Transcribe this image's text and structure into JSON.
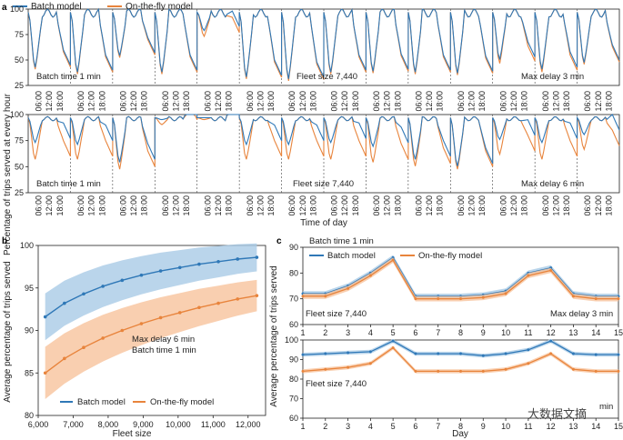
{
  "colors": {
    "batch": "#2f78b7",
    "onthefly": "#e8843c",
    "batch_band": "#a9cbe6",
    "onthefly_band": "#f7c39c"
  },
  "legend": {
    "batch_label": "Batch model",
    "onthefly_label": "On-the-fly model"
  },
  "panel_a": {
    "label": "a",
    "ylabel": "Percentage of trips served at every hour",
    "xlabel": "Time of day",
    "day_ticks": [
      "06:00",
      "12:00",
      "18:00"
    ],
    "days": 14,
    "top": {
      "yticks": [
        25,
        50,
        75,
        100
      ],
      "ylim": [
        25,
        100
      ],
      "batch_time": "Batch time 1 min",
      "fleet": "Fleet size 7,440",
      "delay": "Max delay 3 min",
      "day_min_batch": [
        40,
        35,
        52,
        35,
        78,
        30,
        28,
        35,
        36,
        35,
        34,
        48,
        38,
        45
      ],
      "day_min_onthefly": [
        38,
        33,
        50,
        33,
        72,
        28,
        26,
        33,
        34,
        33,
        32,
        44,
        35,
        43
      ]
    },
    "bottom": {
      "yticks": [
        25,
        50,
        75,
        100
      ],
      "ylim": [
        25,
        100
      ],
      "batch_time": "Batch time 1 min",
      "fleet": "Fleet size 7,440",
      "delay": "Max delay 6 min",
      "day_min_batch": [
        72,
        70,
        52,
        95,
        97,
        70,
        70,
        72,
        68,
        55,
        48,
        75,
        72,
        80
      ],
      "day_min_onthefly": [
        55,
        55,
        45,
        90,
        95,
        55,
        55,
        55,
        52,
        48,
        45,
        60,
        55,
        65
      ]
    }
  },
  "chart_data": [
    {
      "type": "line",
      "title": "",
      "panel": "b",
      "xlabel": "Fleet size",
      "ylabel": "Average percentage of trips served",
      "xlim": [
        6000,
        12500
      ],
      "ylim": [
        80,
        100
      ],
      "xticks": [
        "6,000",
        "7,000",
        "8,000",
        "9,000",
        "10,000",
        "11,000",
        "12,000"
      ],
      "xtick_values": [
        6000,
        7000,
        8000,
        9000,
        10000,
        11000,
        12000
      ],
      "yticks": [
        80,
        85,
        90,
        95,
        100
      ],
      "annotation": [
        "Max delay 6 min",
        "Batch time 1 min"
      ],
      "series": [
        {
          "name": "Batch model",
          "x": [
            6200,
            6750,
            7300,
            7850,
            8400,
            8950,
            9500,
            10050,
            10600,
            11150,
            11700,
            12250
          ],
          "y": [
            91.6,
            93.2,
            94.3,
            95.2,
            95.9,
            96.5,
            97.0,
            97.4,
            97.8,
            98.1,
            98.4,
            98.6
          ],
          "band": 2.5
        },
        {
          "name": "On-the-fly model",
          "x": [
            6200,
            6750,
            7300,
            7850,
            8400,
            8950,
            9500,
            10050,
            10600,
            11150,
            11700,
            12250
          ],
          "y": [
            85.0,
            86.7,
            88.0,
            89.1,
            90.0,
            90.8,
            91.5,
            92.1,
            92.7,
            93.2,
            93.7,
            94.1
          ],
          "band": 2.8
        }
      ],
      "legend": "bottom"
    },
    {
      "type": "line",
      "panel": "c",
      "title": "Batch time 1 min",
      "subplot": "top",
      "xlabel": "Day",
      "ylabel": "Average percentage of trips served",
      "x": [
        1,
        2,
        3,
        4,
        5,
        6,
        7,
        8,
        9,
        10,
        11,
        12,
        13,
        14,
        15
      ],
      "xlim": [
        1,
        15
      ],
      "ylim": [
        60,
        90
      ],
      "yticks": [
        60,
        70,
        80,
        90
      ],
      "annotation_left": "Fleet size 7,440",
      "annotation_right": "Max delay 3 min",
      "series": [
        {
          "name": "Batch model",
          "values": [
            72,
            72,
            75,
            80,
            86,
            71,
            71,
            71,
            71.5,
            73,
            80,
            82,
            72,
            71,
            71
          ]
        },
        {
          "name": "On-the-fly model",
          "values": [
            71,
            71,
            74,
            79,
            85,
            70,
            70,
            70,
            70.5,
            72,
            79,
            81,
            71,
            70,
            70
          ]
        }
      ]
    },
    {
      "type": "line",
      "panel": "c",
      "subplot": "bottom",
      "xlabel": "Day",
      "x": [
        1,
        2,
        3,
        4,
        5,
        6,
        7,
        8,
        9,
        10,
        11,
        12,
        13,
        14,
        15
      ],
      "xticks": [
        "1",
        "2",
        "3",
        "4",
        "5",
        "6",
        "7",
        "8",
        "9",
        "10",
        "11",
        "12",
        "13",
        "14",
        "15"
      ],
      "xlim": [
        1,
        15
      ],
      "ylim": [
        60,
        100
      ],
      "yticks": [
        60,
        70,
        80,
        90,
        100
      ],
      "annotation_left": "Fleet size 7,440",
      "annotation_right": "min",
      "series": [
        {
          "name": "Batch model",
          "values": [
            92.5,
            93,
            93.5,
            94,
            99.5,
            93,
            93,
            93,
            92,
            93,
            95,
            99.5,
            93,
            92.5,
            92.5
          ]
        },
        {
          "name": "On-the-fly model",
          "values": [
            84,
            85,
            86,
            88,
            96,
            84,
            84,
            84,
            84,
            85,
            88,
            93,
            85,
            84,
            84
          ]
        }
      ]
    }
  ],
  "panel_b_label": "b",
  "panel_c_label": "c",
  "watermark": "大数据文摘"
}
